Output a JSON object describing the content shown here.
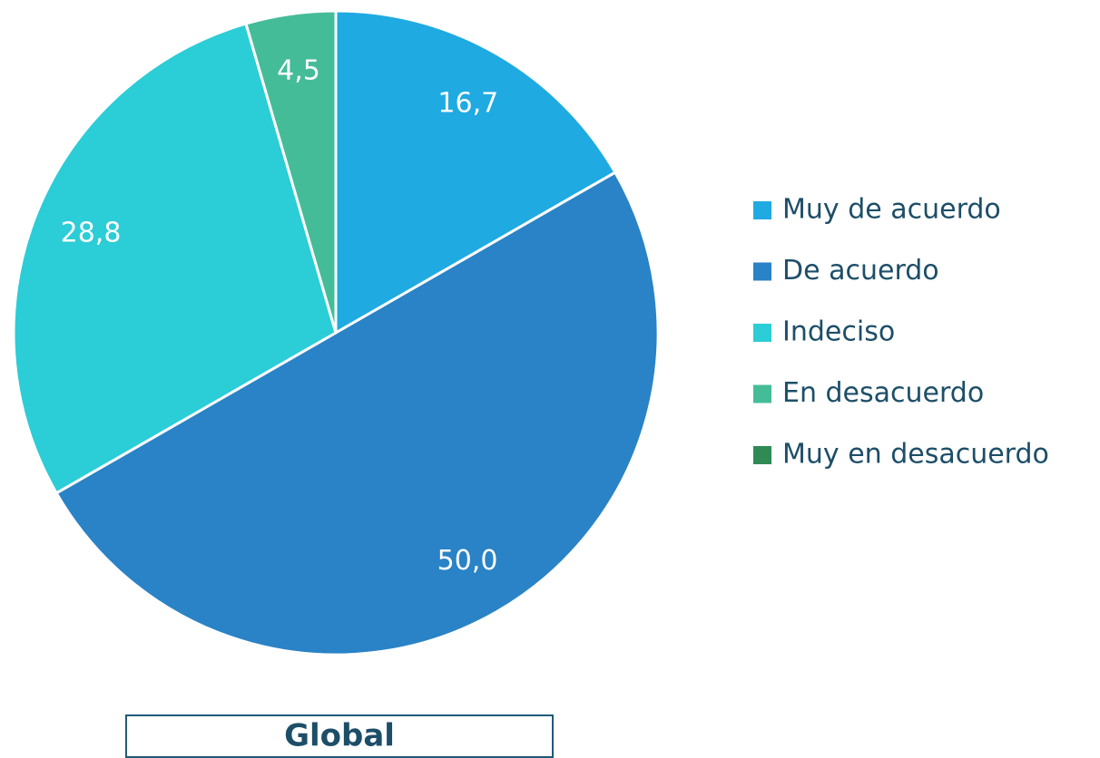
{
  "chart_data": {
    "type": "pie",
    "title": "Global",
    "categories": [
      "Muy de acuerdo",
      "De acuerdo",
      "Indeciso",
      "En desacuerdo",
      "Muy en desacuerdo"
    ],
    "values": [
      16.7,
      50.0,
      28.8,
      4.5,
      0
    ],
    "value_labels": [
      "16,7",
      "50,0",
      "28,8",
      "4,5",
      null
    ],
    "colors": [
      "#1faae2",
      "#2983c6",
      "#2bcdd6",
      "#45bc98",
      "#2f8a56"
    ],
    "legend": "right"
  }
}
